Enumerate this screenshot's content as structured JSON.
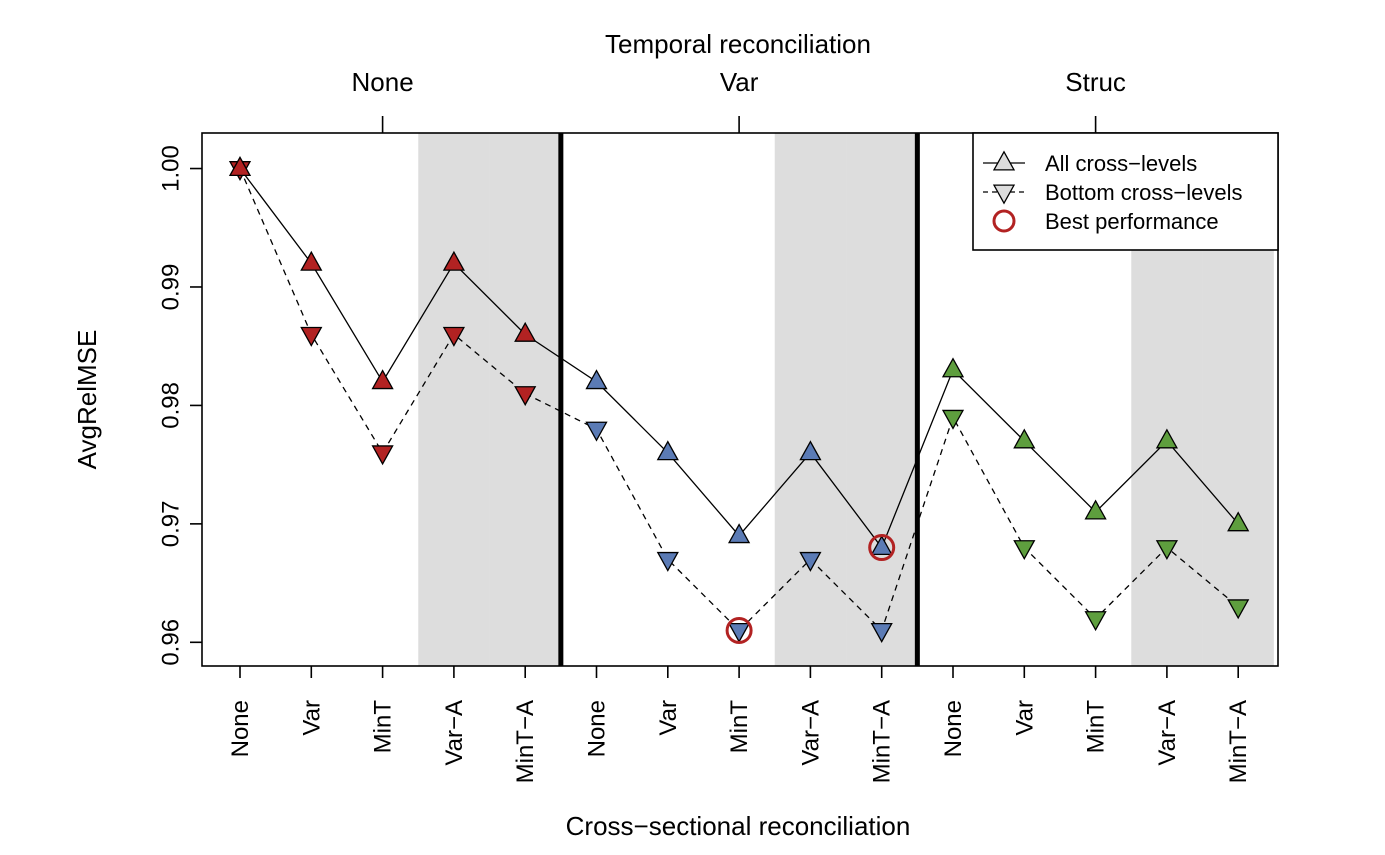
{
  "chart_data": {
    "type": "line",
    "top_title": "Temporal reconciliation",
    "temporal_groups": [
      "None",
      "Var",
      "Struc"
    ],
    "xlabel": "Cross−sectional reconciliation",
    "ylabel": "AvgRelMSE",
    "ylim": [
      0.958,
      1.003
    ],
    "yticks": [
      0.96,
      0.97,
      0.98,
      0.99,
      1.0
    ],
    "ytick_labels": [
      "0.96",
      "0.97",
      "0.98",
      "0.99",
      "1.00"
    ],
    "categories": [
      "None",
      "Var",
      "MinT",
      "Var−A",
      "MinT−A",
      "None",
      "Var",
      "MinT",
      "Var−A",
      "MinT−A",
      "None",
      "Var",
      "MinT",
      "Var−A",
      "MinT−A"
    ],
    "group_colors": [
      "#B22222",
      "#5B7BB5",
      "#5E9E3E"
    ],
    "grid": false,
    "shaded_categories": [
      3,
      4,
      8,
      9,
      13,
      14
    ],
    "series": [
      {
        "name": "All cross−levels",
        "line": "solid",
        "marker": "triangle-up",
        "values": [
          1.0,
          0.992,
          0.982,
          0.992,
          0.986,
          0.982,
          0.976,
          0.969,
          0.976,
          0.968,
          0.983,
          0.977,
          0.971,
          0.977,
          0.97
        ]
      },
      {
        "name": "Bottom cross−levels",
        "line": "dashed",
        "marker": "triangle-down",
        "values": [
          1.0,
          0.986,
          0.976,
          0.986,
          0.981,
          0.978,
          0.967,
          0.961,
          0.967,
          0.961,
          0.979,
          0.968,
          0.962,
          0.968,
          0.963
        ]
      }
    ],
    "best_performance": [
      {
        "series": 1,
        "index": 7
      },
      {
        "series": 0,
        "index": 9
      }
    ],
    "legend": {
      "placement": "top-right",
      "entries": [
        "All cross−levels",
        "Bottom cross−levels",
        "Best performance"
      ],
      "marker_color": "#B22222"
    }
  }
}
